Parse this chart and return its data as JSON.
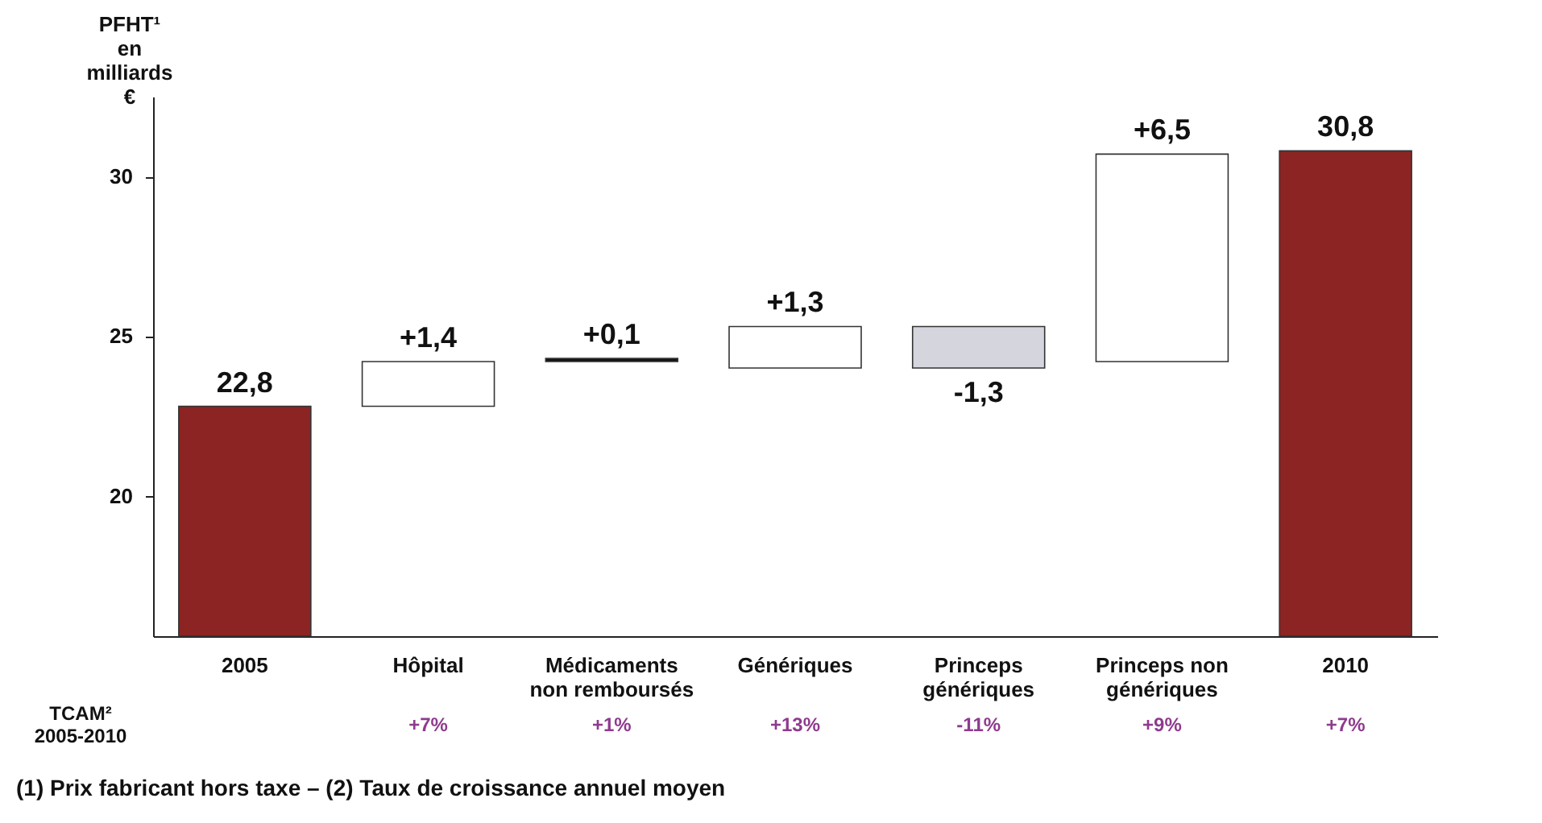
{
  "chart_data": {
    "type": "bar",
    "ylabel": "PFHT¹ en milliards €",
    "categories": [
      "2005",
      "Hôpital",
      "Médicaments non remboursés",
      "Génériques",
      "Princeps génériques",
      "Princeps non génériques",
      "2010"
    ],
    "values": [
      22.8,
      1.4,
      0.1,
      1.3,
      -1.3,
      6.5,
      30.8
    ],
    "base": [
      null,
      22.8,
      24.2,
      24.0,
      25.3,
      24.2,
      null
    ],
    "colors": [
      "#8b2423",
      "#ffffff",
      "#111111",
      "#ffffff",
      "#d5d5dd",
      "#ffffff",
      "#8b2423"
    ],
    "value_labels": [
      "22,8",
      "+1,4",
      "+0,1",
      "+1,3",
      "-1,3",
      "+6,5",
      "30,8"
    ],
    "ylim": [
      15.6,
      32.5
    ],
    "yticks": [
      20,
      25,
      30
    ],
    "grid": false,
    "annotations": [
      "TCAM² 2005-2010",
      "+7%",
      "+1%",
      "+13%",
      "-11%",
      "+9%",
      "+7%",
      "(1) Prix fabricant hors taxe – (2) Taux de croissance annuel moyen"
    ]
  }
}
